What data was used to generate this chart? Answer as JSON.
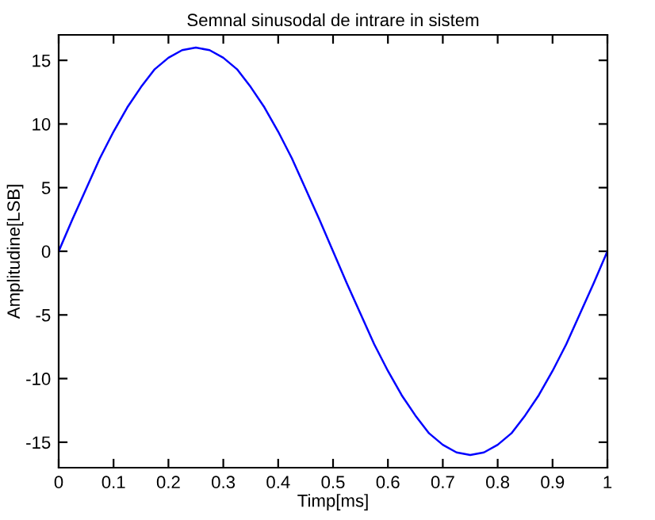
{
  "chart_data": {
    "type": "line",
    "title": "Semnal sinusodal de intrare in sistem",
    "xlabel": "Timp[ms]",
    "ylabel": "Amplitudine[LSB]",
    "x": [
      0,
      0.025,
      0.05,
      0.075,
      0.1,
      0.125,
      0.15,
      0.175,
      0.2,
      0.225,
      0.25,
      0.275,
      0.3,
      0.325,
      0.35,
      0.375,
      0.4,
      0.425,
      0.45,
      0.475,
      0.5,
      0.525,
      0.55,
      0.575,
      0.6,
      0.625,
      0.65,
      0.675,
      0.7,
      0.725,
      0.75,
      0.775,
      0.8,
      0.825,
      0.85,
      0.875,
      0.9,
      0.925,
      0.95,
      0.975,
      1
    ],
    "series": [
      {
        "color": "#0000ff",
        "values": [
          0,
          2.5,
          4.9,
          7.3,
          9.4,
          11.3,
          12.9,
          14.3,
          15.2,
          15.8,
          16,
          15.8,
          15.2,
          14.3,
          12.9,
          11.3,
          9.4,
          7.3,
          4.9,
          2.5,
          0,
          -2.5,
          -4.9,
          -7.3,
          -9.4,
          -11.3,
          -12.9,
          -14.3,
          -15.2,
          -15.8,
          -16,
          -15.8,
          -15.2,
          -14.3,
          -12.9,
          -11.3,
          -9.4,
          -7.3,
          -4.9,
          -2.5,
          0
        ]
      }
    ],
    "xlim": [
      0,
      1
    ],
    "xticks": [
      0,
      0.1,
      0.2,
      0.3,
      0.4,
      0.5,
      0.6,
      0.7,
      0.8,
      0.9,
      1
    ],
    "ylim": [
      -17,
      17
    ],
    "yticks": [
      -15,
      -10,
      -5,
      0,
      5,
      10,
      15
    ],
    "grid": false
  }
}
